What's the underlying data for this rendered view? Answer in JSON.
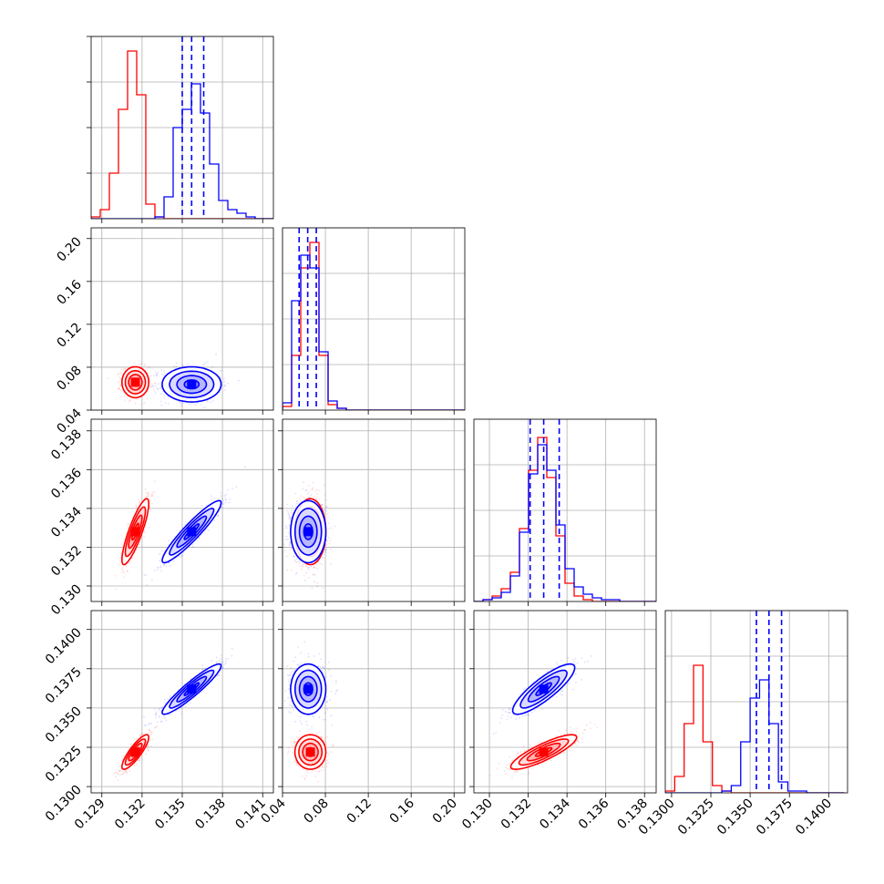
{
  "chart_data": {
    "type": "corner",
    "grid": true,
    "series": [
      {
        "color": "#ff0000",
        "mean": [
          0.1315,
          0.066,
          0.1328,
          0.1322
        ],
        "sd": [
          0.0005,
          0.0072,
          0.00085,
          0.00055
        ],
        "corr": {
          "0-2": 0.85,
          "0-3": 0.85,
          "2-3": 0.85
        }
      },
      {
        "color": "#0000ff",
        "mean": [
          0.1357,
          0.064,
          0.1328,
          0.1362
        ],
        "sd": [
          0.0011,
          0.0082,
          0.0008,
          0.0008
        ],
        "corr": {
          "0-2": 0.93,
          "0-3": 0.93,
          "2-3": 0.85
        }
      }
    ],
    "variables": [
      {
        "range": [
          0.1282,
          0.1418
        ],
        "ticks": [
          "0.129",
          "0.132",
          "0.135",
          "0.138",
          "0.141"
        ],
        "tick_values": [
          0.129,
          0.132,
          0.135,
          0.138,
          0.141
        ],
        "quantiles": [
          0.135,
          0.1357,
          0.1366
        ],
        "hist_bins": [
          0.1282,
          0.12888,
          0.12956,
          0.13024,
          0.13092,
          0.1316,
          0.13228,
          0.13296,
          0.13364,
          0.13432,
          0.135,
          0.13568,
          0.13636,
          0.13704,
          0.13772,
          0.1384,
          0.13908,
          0.13976,
          0.14044,
          0.14112,
          0.1418
        ],
        "hist_red": [
          0.01,
          0.05,
          0.25,
          0.6,
          0.92,
          0.68,
          0.08,
          0.01,
          0,
          0,
          0,
          0,
          0,
          0,
          0,
          0,
          0,
          0,
          0,
          0
        ],
        "hist_blue": [
          0,
          0,
          0,
          0,
          0,
          0,
          0,
          0.01,
          0.12,
          0.5,
          0.6,
          0.74,
          0.58,
          0.3,
          0.1,
          0.05,
          0.03,
          0.01,
          0,
          0
        ]
      },
      {
        "range": [
          0.04,
          0.21
        ],
        "ticks": [
          "0.04",
          "0.08",
          "0.12",
          "0.16",
          "0.20"
        ],
        "tick_values": [
          0.04,
          0.08,
          0.12,
          0.16,
          0.2
        ],
        "quantiles": [
          0.0555,
          0.0635,
          0.0715
        ],
        "hist_bins": [
          0.04,
          0.0485,
          0.057,
          0.0655,
          0.074,
          0.0825,
          0.091,
          0.0995,
          0.108,
          0.1165,
          0.125,
          0.1335,
          0.142,
          0.1505,
          0.159,
          0.1675,
          0.176,
          0.1845,
          0.193,
          0.2015,
          0.21
        ],
        "hist_red": [
          0.02,
          0.3,
          0.78,
          0.92,
          0.3,
          0.03,
          0.01,
          0,
          0,
          0,
          0,
          0,
          0,
          0,
          0,
          0,
          0,
          0,
          0,
          0
        ],
        "hist_blue": [
          0.04,
          0.6,
          0.85,
          0.78,
          0.32,
          0.05,
          0.01,
          0,
          0,
          0,
          0,
          0,
          0,
          0,
          0,
          0,
          0,
          0,
          0,
          0
        ]
      },
      {
        "range": [
          0.1292,
          0.1386
        ],
        "ticks": [
          "0.130",
          "0.132",
          "0.134",
          "0.136",
          "0.138"
        ],
        "tick_values": [
          0.13,
          0.132,
          0.134,
          0.136,
          0.138
        ],
        "quantiles": [
          0.1321,
          0.1328,
          0.1336
        ],
        "hist_bins": [
          0.1292,
          0.12967,
          0.13014,
          0.13061,
          0.13108,
          0.13155,
          0.13202,
          0.13249,
          0.13296,
          0.13343,
          0.1339,
          0.13437,
          0.13484,
          0.13531,
          0.13578,
          0.13625,
          0.13672,
          0.13719,
          0.13766,
          0.13813,
          0.1386
        ],
        "hist_red": [
          0,
          0.01,
          0.03,
          0.07,
          0.16,
          0.4,
          0.72,
          0.9,
          0.68,
          0.36,
          0.1,
          0.03,
          0.01,
          0,
          0,
          0,
          0,
          0,
          0,
          0
        ],
        "hist_blue": [
          0,
          0.01,
          0.02,
          0.05,
          0.14,
          0.38,
          0.7,
          0.86,
          0.72,
          0.42,
          0.18,
          0.08,
          0.04,
          0.02,
          0.01,
          0.01,
          0,
          0,
          0,
          0
        ]
      },
      {
        "range": [
          0.1296,
          0.1412
        ],
        "ticks": [
          "0.1300",
          "0.1325",
          "0.1350",
          "0.1375",
          "0.1400"
        ],
        "tick_values": [
          0.13,
          0.1325,
          0.135,
          0.1375,
          0.14
        ],
        "quantiles": [
          0.1354,
          0.1362,
          0.137
        ],
        "hist_bins": [
          0.1296,
          0.1302,
          0.1308,
          0.1314,
          0.132,
          0.1326,
          0.1332,
          0.1338,
          0.1344,
          0.135,
          0.1356,
          0.1362,
          0.1368,
          0.1374,
          0.138,
          0.1386,
          0.1392,
          0.1398,
          0.1404,
          0.141
        ],
        "hist_red": [
          0.01,
          0.09,
          0.38,
          0.7,
          0.28,
          0.04,
          0.01,
          0,
          0,
          0,
          0,
          0,
          0,
          0,
          0,
          0,
          0,
          0,
          0
        ],
        "hist_blue": [
          0,
          0,
          0,
          0,
          0,
          0,
          0.01,
          0.04,
          0.28,
          0.52,
          0.62,
          0.38,
          0.06,
          0.01,
          0.01,
          0,
          0,
          0,
          0
        ]
      }
    ]
  }
}
